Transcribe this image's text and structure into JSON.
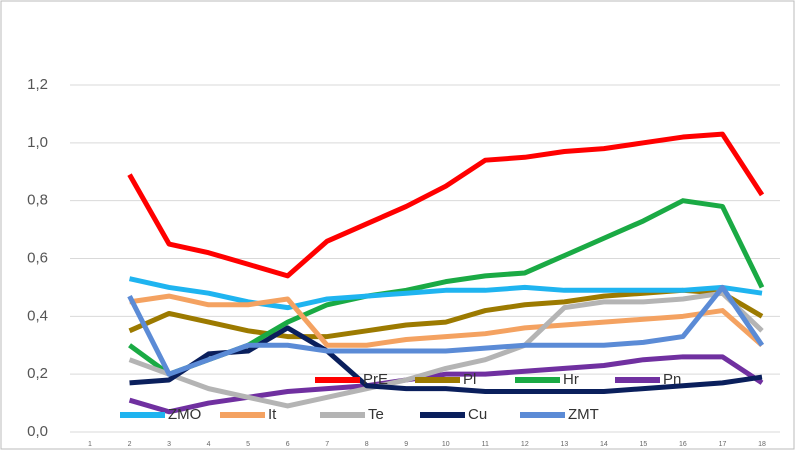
{
  "chart_data": {
    "type": "line",
    "categories": [
      "1",
      "2",
      "3",
      "4",
      "5",
      "6",
      "7",
      "8",
      "9",
      "10",
      "11",
      "12",
      "13",
      "14",
      "15",
      "16",
      "17",
      "18"
    ],
    "ylim": [
      0,
      1.2
    ],
    "yticks": [
      {
        "value": 0,
        "label": "0,0"
      },
      {
        "value": 0.2,
        "label": "0,2"
      },
      {
        "value": 0.4,
        "label": "0,4"
      },
      {
        "value": 0.6,
        "label": "0,6"
      },
      {
        "value": 0.8,
        "label": "0,8"
      },
      {
        "value": 1.0,
        "label": "1,0"
      },
      {
        "value": 1.2,
        "label": "1,2"
      }
    ],
    "grid": true,
    "series": [
      {
        "name": "PrE",
        "color": "#ff0000",
        "values": [
          null,
          0.89,
          0.65,
          0.62,
          0.58,
          0.54,
          0.66,
          0.72,
          0.78,
          0.85,
          0.94,
          0.95,
          0.97,
          0.98,
          1.0,
          1.02,
          1.03,
          0.82
        ]
      },
      {
        "name": "Pl",
        "color": "#9c7a00",
        "values": [
          null,
          0.35,
          0.41,
          0.38,
          0.35,
          0.33,
          0.33,
          0.35,
          0.37,
          0.38,
          0.42,
          0.44,
          0.45,
          0.47,
          0.48,
          0.49,
          0.48,
          0.4
        ]
      },
      {
        "name": "Hr",
        "color": "#1aaa44",
        "values": [
          null,
          0.3,
          0.2,
          0.25,
          0.3,
          0.38,
          0.44,
          0.47,
          0.49,
          0.52,
          0.54,
          0.55,
          0.61,
          0.67,
          0.73,
          0.8,
          0.78,
          0.5
        ]
      },
      {
        "name": "Pn",
        "color": "#7030a0",
        "values": [
          null,
          0.11,
          0.07,
          0.1,
          0.12,
          0.14,
          0.15,
          0.16,
          0.18,
          0.2,
          0.2,
          0.21,
          0.22,
          0.23,
          0.25,
          0.26,
          0.26,
          0.17
        ]
      },
      {
        "name": "ZMO",
        "color": "#1fb4f0",
        "values": [
          null,
          0.53,
          0.5,
          0.48,
          0.45,
          0.43,
          0.46,
          0.47,
          0.48,
          0.49,
          0.49,
          0.5,
          0.49,
          0.49,
          0.49,
          0.49,
          0.5,
          0.48
        ]
      },
      {
        "name": "It",
        "color": "#f4a261",
        "values": [
          null,
          0.45,
          0.47,
          0.44,
          0.44,
          0.46,
          0.3,
          0.3,
          0.32,
          0.33,
          0.34,
          0.36,
          0.37,
          0.38,
          0.39,
          0.4,
          0.42,
          0.3
        ]
      },
      {
        "name": "Te",
        "color": "#b4b4b4",
        "values": [
          null,
          0.25,
          0.2,
          0.15,
          0.12,
          0.09,
          0.12,
          0.15,
          0.18,
          0.22,
          0.25,
          0.3,
          0.43,
          0.45,
          0.45,
          0.46,
          0.48,
          0.35
        ]
      },
      {
        "name": "Cu",
        "color": "#0a1f5c",
        "values": [
          null,
          0.17,
          0.18,
          0.27,
          0.28,
          0.36,
          0.28,
          0.16,
          0.15,
          0.15,
          0.14,
          0.14,
          0.14,
          0.14,
          0.15,
          0.16,
          0.17,
          0.19
        ]
      },
      {
        "name": "ZMT",
        "color": "#5b8bd6",
        "values": [
          null,
          0.47,
          0.2,
          0.25,
          0.3,
          0.3,
          0.28,
          0.28,
          0.28,
          0.28,
          0.29,
          0.3,
          0.3,
          0.3,
          0.31,
          0.33,
          0.5,
          0.3
        ]
      }
    ]
  }
}
